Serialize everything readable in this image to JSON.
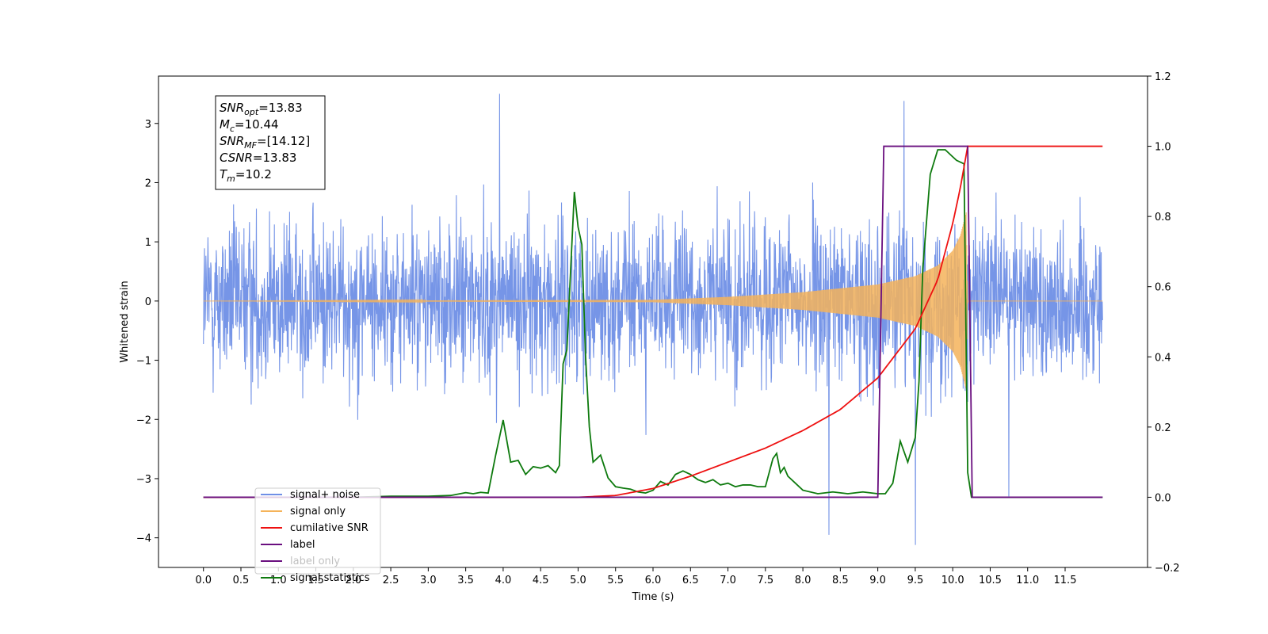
{
  "chart_data": {
    "type": "line",
    "xlabel": "Time (s)",
    "ylabel": "Whitened strain",
    "xlim": [
      -0.6,
      12.6
    ],
    "ylim_left": [
      -4.5,
      3.8
    ],
    "ylim_right": [
      -0.2,
      1.2
    ],
    "x_ticks": [
      0.0,
      0.5,
      1.0,
      1.5,
      2.0,
      2.5,
      3.0,
      3.5,
      4.0,
      4.5,
      5.0,
      5.5,
      6.0,
      6.5,
      7.0,
      7.5,
      8.0,
      8.5,
      9.0,
      9.5,
      10.0,
      10.5,
      11.0,
      11.5
    ],
    "x_tick_labels": [
      "0.0",
      "0.5",
      "1.0",
      "1.5",
      "2.0",
      "2.5",
      "3.0",
      "3.5",
      "4.0",
      "4.5",
      "5.0",
      "5.5",
      "6.0",
      "6.5",
      "7.0",
      "7.5",
      "8.0",
      "8.5",
      "9.0",
      "9.5",
      "10.0",
      "10.5",
      "11.0",
      "11.5"
    ],
    "y_left_ticks": [
      -4,
      -3,
      -2,
      -1,
      0,
      1,
      2,
      3
    ],
    "y_left_tick_labels": [
      "−4",
      "−3",
      "−2",
      "−1",
      "0",
      "1",
      "2",
      "3"
    ],
    "y_right_ticks": [
      -0.2,
      0.0,
      0.2,
      0.4,
      0.6,
      0.8,
      1.0,
      1.2
    ],
    "y_right_tick_labels": [
      "−0.2",
      "0.0",
      "0.2",
      "0.4",
      "0.6",
      "0.8",
      "1.0",
      "1.2"
    ],
    "grid": false,
    "legend_position": "bottom-left",
    "annotation": {
      "lines": [
        {
          "pre": "SNR",
          "sub": "opt",
          "post": "=13.83"
        },
        {
          "pre": "M",
          "sub": "c",
          "post": "=10.44"
        },
        {
          "pre": "SNR",
          "sub": "MF",
          "post": "=[14.12]"
        },
        {
          "pre": "CSNR",
          "sub": "",
          "post": "=13.83"
        },
        {
          "pre": "T",
          "sub": "m",
          "post": "=10.2"
        }
      ]
    },
    "series": [
      {
        "name": "signal+ noise",
        "axis": "left",
        "color": "#6f8fe6",
        "description_type": "noise",
        "x_range": [
          0.0,
          12.0
        ],
        "amplitude_typical": 1.6,
        "peak_values": [
          [
            3.95,
            3.5
          ],
          [
            9.35,
            3.38
          ],
          [
            9.5,
            -4.12
          ],
          [
            8.35,
            -3.95
          ],
          [
            10.75,
            -3.3
          ]
        ]
      },
      {
        "name": "signal only",
        "axis": "left",
        "color": "#f5b35a",
        "description_type": "chirp",
        "x_range": [
          0.0,
          12.0
        ],
        "envelope": [
          [
            0.0,
            0.0
          ],
          [
            6.0,
            0.02
          ],
          [
            7.0,
            0.07
          ],
          [
            8.0,
            0.15
          ],
          [
            9.0,
            0.28
          ],
          [
            9.5,
            0.42
          ],
          [
            9.8,
            0.6
          ],
          [
            10.0,
            0.85
          ],
          [
            10.1,
            1.1
          ],
          [
            10.18,
            1.5
          ],
          [
            10.2,
            0.0
          ],
          [
            12.0,
            0.0
          ]
        ]
      },
      {
        "name": "cumilative SNR",
        "axis": "right",
        "color": "#ee1111",
        "x": [
          0.0,
          5.0,
          5.5,
          6.0,
          6.5,
          7.0,
          7.5,
          8.0,
          8.5,
          9.0,
          9.5,
          9.8,
          10.0,
          10.1,
          10.2,
          12.0
        ],
        "y": [
          0.0,
          0.0,
          0.005,
          0.025,
          0.06,
          0.1,
          0.14,
          0.19,
          0.25,
          0.34,
          0.48,
          0.62,
          0.78,
          0.88,
          1.0,
          1.0
        ]
      },
      {
        "name": "label",
        "axis": "right",
        "color": "#6a0f7f",
        "x": [
          0.0,
          9.0,
          9.08,
          10.2,
          10.26,
          12.0
        ],
        "y": [
          0.0,
          0.0,
          1.0,
          1.0,
          0.0,
          0.0
        ]
      },
      {
        "name": "label only",
        "axis": "right",
        "color": "#6a0f7f",
        "hidden": true,
        "x": [],
        "y": []
      },
      {
        "name": "signal statistics",
        "axis": "right",
        "color": "#0e7a0e",
        "x": [
          0.0,
          0.5,
          1.0,
          1.5,
          2.0,
          2.5,
          3.0,
          3.3,
          3.5,
          3.6,
          3.7,
          3.8,
          3.9,
          4.0,
          4.1,
          4.2,
          4.3,
          4.4,
          4.5,
          4.6,
          4.7,
          4.75,
          4.8,
          4.85,
          4.95,
          5.0,
          5.05,
          5.1,
          5.15,
          5.2,
          5.3,
          5.4,
          5.5,
          5.6,
          5.7,
          5.8,
          5.9,
          6.0,
          6.1,
          6.2,
          6.3,
          6.4,
          6.5,
          6.6,
          6.7,
          6.8,
          6.9,
          7.0,
          7.1,
          7.2,
          7.3,
          7.4,
          7.5,
          7.6,
          7.65,
          7.7,
          7.75,
          7.8,
          7.9,
          8.0,
          8.2,
          8.4,
          8.6,
          8.8,
          9.0,
          9.1,
          9.2,
          9.3,
          9.4,
          9.5,
          9.55,
          9.6,
          9.7,
          9.8,
          9.9,
          10.0,
          10.05,
          10.15,
          10.2,
          10.25,
          12.0
        ],
        "y": [
          0.0,
          0.0,
          0.0,
          0.0,
          0.0,
          0.003,
          0.003,
          0.005,
          0.013,
          0.01,
          0.014,
          0.012,
          0.12,
          0.22,
          0.1,
          0.105,
          0.065,
          0.087,
          0.083,
          0.09,
          0.07,
          0.09,
          0.38,
          0.42,
          0.87,
          0.77,
          0.72,
          0.4,
          0.2,
          0.1,
          0.12,
          0.055,
          0.03,
          0.026,
          0.023,
          0.015,
          0.012,
          0.02,
          0.045,
          0.035,
          0.065,
          0.075,
          0.065,
          0.05,
          0.042,
          0.05,
          0.035,
          0.04,
          0.03,
          0.035,
          0.035,
          0.03,
          0.03,
          0.11,
          0.125,
          0.07,
          0.085,
          0.06,
          0.04,
          0.02,
          0.01,
          0.015,
          0.01,
          0.015,
          0.01,
          0.01,
          0.04,
          0.16,
          0.1,
          0.17,
          0.33,
          0.65,
          0.92,
          0.99,
          0.99,
          0.97,
          0.96,
          0.95,
          0.07,
          0.0,
          0.0
        ]
      }
    ]
  }
}
